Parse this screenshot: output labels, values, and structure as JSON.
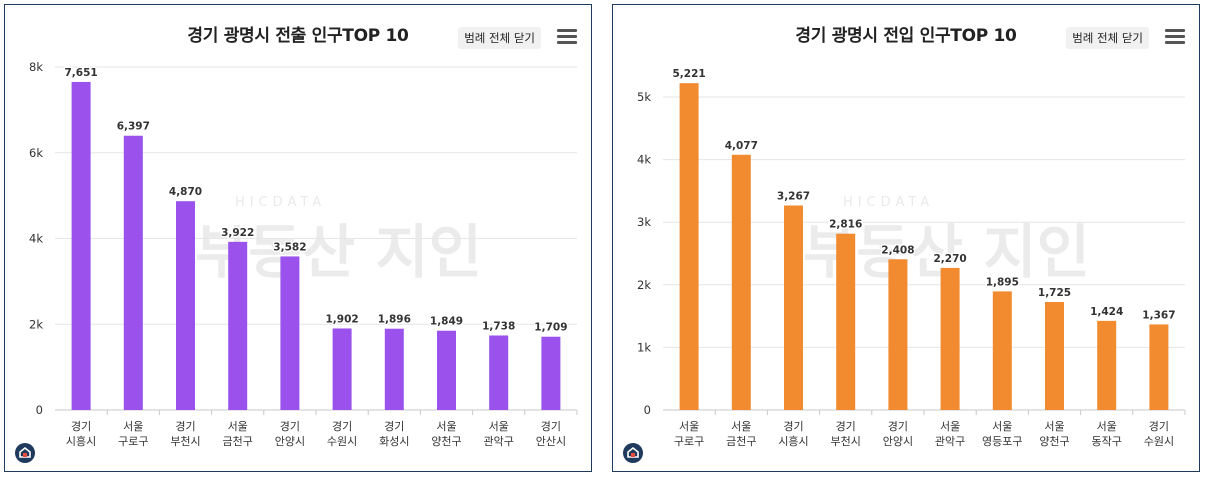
{
  "charts": [
    {
      "title": "경기 광명시 전출 인구TOP 10",
      "legend_toggle_label": "범례 전체 닫기",
      "menu_icon": "hamburger-menu-icon",
      "logo_icon": "home-logo-icon",
      "watermark": {
        "small": "HICDATA",
        "big": "부동산 지인"
      },
      "bar_color": "#9b52ec"
    },
    {
      "title": "경기 광명시 전입 인구TOP 10",
      "legend_toggle_label": "범례 전체 닫기",
      "menu_icon": "hamburger-menu-icon",
      "logo_icon": "home-logo-icon",
      "watermark": {
        "small": "HICDATA",
        "big": "부동산 지인"
      },
      "bar_color": "#f28a30"
    }
  ],
  "chart_data": [
    {
      "type": "bar",
      "title": "경기 광명시 전출 인구TOP 10",
      "categories": [
        [
          "경기",
          "시흥시"
        ],
        [
          "서울",
          "구로구"
        ],
        [
          "경기",
          "부천시"
        ],
        [
          "서울",
          "금천구"
        ],
        [
          "경기",
          "안양시"
        ],
        [
          "경기",
          "수원시"
        ],
        [
          "경기",
          "화성시"
        ],
        [
          "서울",
          "양천구"
        ],
        [
          "서울",
          "관악구"
        ],
        [
          "경기",
          "안산시"
        ]
      ],
      "values": [
        7651,
        6397,
        4870,
        3922,
        3582,
        1902,
        1896,
        1849,
        1738,
        1709
      ],
      "value_labels": [
        "7,651",
        "6,397",
        "4,870",
        "3,922",
        "3,582",
        "1,902",
        "1,896",
        "1,849",
        "1,738",
        "1,709"
      ],
      "ylim": [
        0,
        8000
      ],
      "yticks": [
        0,
        2000,
        4000,
        6000,
        8000
      ],
      "ytick_labels": [
        "0",
        "2k",
        "4k",
        "6k",
        "8k"
      ],
      "grid": true,
      "color": "#9b52ec"
    },
    {
      "type": "bar",
      "title": "경기 광명시 전입 인구TOP 10",
      "categories": [
        [
          "서울",
          "구로구"
        ],
        [
          "서울",
          "금천구"
        ],
        [
          "경기",
          "시흥시"
        ],
        [
          "경기",
          "부천시"
        ],
        [
          "경기",
          "안양시"
        ],
        [
          "서울",
          "관악구"
        ],
        [
          "서울",
          "영등포구"
        ],
        [
          "서울",
          "양천구"
        ],
        [
          "서울",
          "동작구"
        ],
        [
          "경기",
          "수원시"
        ]
      ],
      "values": [
        5221,
        4077,
        3267,
        2816,
        2408,
        2270,
        1895,
        1725,
        1424,
        1367
      ],
      "value_labels": [
        "5,221",
        "4,077",
        "3,267",
        "2,816",
        "2,408",
        "2,270",
        "1,895",
        "1,725",
        "1,424",
        "1,367"
      ],
      "ylim": [
        0,
        5000
      ],
      "yticks": [
        0,
        1000,
        2000,
        3000,
        4000,
        5000
      ],
      "ytick_labels": [
        "0",
        "1k",
        "2k",
        "3k",
        "4k",
        "5k"
      ],
      "grid": true,
      "color": "#f28a30"
    }
  ]
}
